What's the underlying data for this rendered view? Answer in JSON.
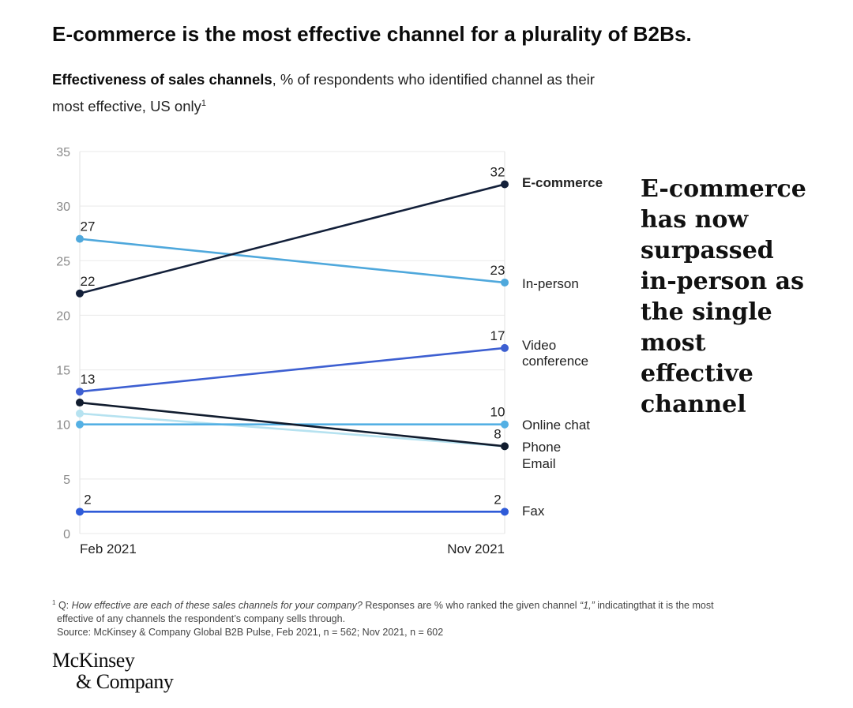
{
  "title": "E-commerce is the most effective channel for a plurality of B2Bs.",
  "subtitle": {
    "bold": "Effectiveness of sales channels",
    "rest": ", % of respondents who identified channel as their",
    "line2": "most effective, US only",
    "sup": "1"
  },
  "callout": {
    "lines": [
      "E-commerce",
      "has now",
      "surpassed",
      "in-person as",
      "the single most",
      "effective",
      "channel"
    ]
  },
  "footnote": {
    "marker": "1",
    "q_prefix": "Q: ",
    "question": "How effective are each of these sales channels for your company?",
    "responses": " Responses are % who ranked the given channel ",
    "quoted": "“1,”",
    "rest": " indicatingthat it is the most",
    "line2": "effective of any channels the respondent’s company sells through.",
    "source": "Source: McKinsey & Company Global B2B Pulse, Feb 2021, n = 562; Nov 2021, n = 602"
  },
  "logo": {
    "line1": "McKinsey",
    "line2": "& Company"
  },
  "chart_data": {
    "type": "line",
    "title": "Effectiveness of sales channels",
    "xlabel": "",
    "ylabel": "% of respondents",
    "categories": [
      "Feb 2021",
      "Nov 2021"
    ],
    "ylim": [
      0,
      35
    ],
    "yticks": [
      0,
      5,
      10,
      15,
      20,
      25,
      30,
      35
    ],
    "grid": true,
    "series": [
      {
        "name": "E-commerce",
        "values": [
          22,
          32
        ],
        "color": "#13203a",
        "label_bold": true,
        "show_start": "22",
        "show_end": "32"
      },
      {
        "name": "In-person",
        "values": [
          27,
          23
        ],
        "color": "#4fa8dc",
        "label_bold": false,
        "show_start": "27",
        "show_end": "23"
      },
      {
        "name": "Video\nconference",
        "values": [
          13,
          17
        ],
        "color": "#3d5fd1",
        "label_bold": false,
        "show_start": "13",
        "show_end": "17"
      },
      {
        "name": "Online chat",
        "values": [
          10,
          10
        ],
        "color": "#54b0e4",
        "label_bold": false,
        "show_start": "",
        "show_end": "10"
      },
      {
        "name": "Phone",
        "values": [
          12,
          8
        ],
        "color": "#111c2e",
        "label_bold": false,
        "show_start": "",
        "show_end": "8"
      },
      {
        "name": "Email",
        "values": [
          11,
          8
        ],
        "color": "#b6e2f0",
        "label_bold": false,
        "show_start": "",
        "show_end": ""
      },
      {
        "name": "Fax",
        "values": [
          2,
          2
        ],
        "color": "#2f5bd8",
        "label_bold": false,
        "show_start": "2",
        "show_end": "2"
      }
    ]
  }
}
